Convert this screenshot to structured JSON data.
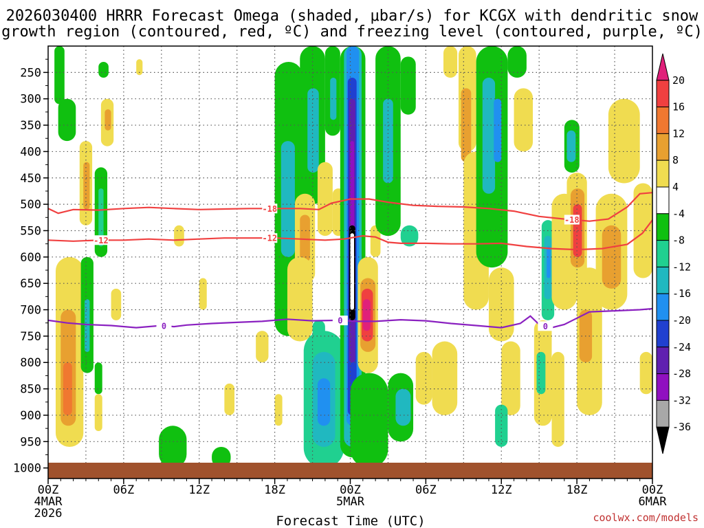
{
  "chart_data": {
    "type": "heatmap",
    "title_lines": [
      "2026030400 HRRR Forecast Omega (shaded, μbar/s) for KCGX with dendritic snow",
      "growth region (contoured, red, ºC) and freezing level (contoured, purple, ºC)"
    ],
    "xlabel": "Forecast Time (UTC)",
    "ylabel": "",
    "credit": "coolwx.com/models",
    "x_range_hours": [
      0,
      48
    ],
    "y_range_hpa": [
      1020,
      200
    ],
    "x_ticks": [
      {
        "hour": 0,
        "lines": [
          "00Z",
          "4MAR",
          "2026"
        ]
      },
      {
        "hour": 6,
        "lines": [
          "06Z"
        ]
      },
      {
        "hour": 12,
        "lines": [
          "12Z"
        ]
      },
      {
        "hour": 18,
        "lines": [
          "18Z"
        ]
      },
      {
        "hour": 24,
        "lines": [
          "00Z",
          "5MAR"
        ]
      },
      {
        "hour": 30,
        "lines": [
          "06Z"
        ]
      },
      {
        "hour": 36,
        "lines": [
          "12Z"
        ]
      },
      {
        "hour": 42,
        "lines": [
          "18Z"
        ]
      },
      {
        "hour": 48,
        "lines": [
          "00Z",
          "6MAR"
        ]
      }
    ],
    "y_ticks": [
      250,
      300,
      350,
      400,
      450,
      500,
      550,
      600,
      650,
      700,
      750,
      800,
      850,
      900,
      950,
      1000
    ],
    "colorbar": {
      "labels": [
        "20",
        "16",
        "12",
        "8",
        "4",
        "-4",
        "-8",
        "-12",
        "-16",
        "-20",
        "-24",
        "-28",
        "-32",
        "-36"
      ],
      "colors": [
        "#e0207a",
        "#f04040",
        "#f07830",
        "#e8a030",
        "#f0dc50",
        "#ffffff",
        "#10c010",
        "#20d090",
        "#20b8c0",
        "#2090f0",
        "#2040d0",
        "#6020b0",
        "#9010c0",
        "#a8a8a8",
        "#000000"
      ]
    },
    "surface_color": "#a0522d",
    "omega_cells": [
      {
        "h0": 0.5,
        "h1": 1.3,
        "p0": 200,
        "p1": 310,
        "v": -6
      },
      {
        "h0": 0.8,
        "h1": 2.2,
        "p0": 300,
        "p1": 380,
        "v": -6
      },
      {
        "h0": 4.0,
        "h1": 4.8,
        "p0": 230,
        "p1": 260,
        "v": -6
      },
      {
        "h0": 7.0,
        "h1": 7.5,
        "p0": 225,
        "p1": 255,
        "v": 5
      },
      {
        "h0": 4.2,
        "h1": 5.2,
        "p0": 300,
        "p1": 390,
        "v": 5
      },
      {
        "h0": 4.5,
        "h1": 5.0,
        "p0": 320,
        "p1": 360,
        "v": 9
      },
      {
        "h0": 2.5,
        "h1": 3.5,
        "p0": 380,
        "p1": 540,
        "v": 6
      },
      {
        "h0": 2.8,
        "h1": 3.3,
        "p0": 420,
        "p1": 510,
        "v": 10
      },
      {
        "h0": 3.7,
        "h1": 4.7,
        "p0": 430,
        "p1": 600,
        "v": -7
      },
      {
        "h0": 4.0,
        "h1": 4.4,
        "p0": 470,
        "p1": 580,
        "v": -11
      },
      {
        "h0": 0.6,
        "h1": 2.8,
        "p0": 600,
        "p1": 960,
        "v": 6
      },
      {
        "h0": 1.0,
        "h1": 2.2,
        "p0": 700,
        "p1": 920,
        "v": 10
      },
      {
        "h0": 1.2,
        "h1": 1.9,
        "p0": 800,
        "p1": 900,
        "v": 13
      },
      {
        "h0": 2.6,
        "h1": 3.6,
        "p0": 600,
        "p1": 820,
        "v": -7
      },
      {
        "h0": 2.9,
        "h1": 3.3,
        "p0": 680,
        "p1": 780,
        "v": -12
      },
      {
        "h0": 5.0,
        "h1": 5.8,
        "p0": 660,
        "p1": 720,
        "v": 5
      },
      {
        "h0": 3.7,
        "h1": 4.3,
        "p0": 800,
        "p1": 860,
        "v": -7
      },
      {
        "h0": 3.7,
        "h1": 4.3,
        "p0": 860,
        "p1": 930,
        "v": 6
      },
      {
        "h0": 8.8,
        "h1": 11.0,
        "p0": 920,
        "p1": 1000,
        "v": -7
      },
      {
        "h0": 13.0,
        "h1": 14.5,
        "p0": 960,
        "p1": 1000,
        "v": -6
      },
      {
        "h0": 10.0,
        "h1": 10.8,
        "p0": 540,
        "p1": 580,
        "v": 5
      },
      {
        "h0": 12.0,
        "h1": 12.6,
        "p0": 640,
        "p1": 700,
        "v": 5
      },
      {
        "h0": 14.0,
        "h1": 14.8,
        "p0": 840,
        "p1": 900,
        "v": 5
      },
      {
        "h0": 18.0,
        "h1": 18.6,
        "p0": 860,
        "p1": 920,
        "v": 6
      },
      {
        "h0": 16.5,
        "h1": 17.5,
        "p0": 740,
        "p1": 800,
        "v": 5
      },
      {
        "h0": 18.0,
        "h1": 20.2,
        "p0": 230,
        "p1": 750,
        "v": -7
      },
      {
        "h0": 18.5,
        "h1": 19.6,
        "p0": 380,
        "p1": 600,
        "v": -12
      },
      {
        "h0": 20.0,
        "h1": 22.0,
        "p0": 200,
        "p1": 500,
        "v": -7
      },
      {
        "h0": 20.6,
        "h1": 21.5,
        "p0": 280,
        "p1": 440,
        "v": -12
      },
      {
        "h0": 22.0,
        "h1": 23.2,
        "p0": 200,
        "p1": 370,
        "v": -7
      },
      {
        "h0": 22.4,
        "h1": 22.9,
        "p0": 260,
        "p1": 340,
        "v": -13
      },
      {
        "h0": 19.6,
        "h1": 21.2,
        "p0": 480,
        "p1": 650,
        "v": 6
      },
      {
        "h0": 20.0,
        "h1": 20.8,
        "p0": 520,
        "p1": 610,
        "v": 10
      },
      {
        "h0": 21.4,
        "h1": 22.6,
        "p0": 420,
        "p1": 560,
        "v": 6
      },
      {
        "h0": 22.6,
        "h1": 23.5,
        "p0": 470,
        "p1": 560,
        "v": 5
      },
      {
        "h0": 19.0,
        "h1": 21.0,
        "p0": 600,
        "p1": 760,
        "v": 5
      },
      {
        "h0": 21.0,
        "h1": 22.0,
        "p0": 720,
        "p1": 780,
        "v": -8
      },
      {
        "h0": 20.3,
        "h1": 23.5,
        "p0": 740,
        "p1": 1000,
        "v": -8
      },
      {
        "h0": 21.0,
        "h1": 22.8,
        "p0": 780,
        "p1": 960,
        "v": -13
      },
      {
        "h0": 21.4,
        "h1": 22.4,
        "p0": 830,
        "p1": 920,
        "v": -17
      },
      {
        "h0": 23.2,
        "h1": 25.2,
        "p0": 200,
        "p1": 980,
        "v": -7
      },
      {
        "h0": 23.5,
        "h1": 24.9,
        "p0": 200,
        "p1": 960,
        "v": -12
      },
      {
        "h0": 23.7,
        "h1": 24.7,
        "p0": 200,
        "p1": 920,
        "v": -17
      },
      {
        "h0": 23.8,
        "h1": 24.5,
        "p0": 260,
        "p1": 900,
        "v": -22
      },
      {
        "h0": 23.9,
        "h1": 24.4,
        "p0": 300,
        "p1": 800,
        "v": -26
      },
      {
        "h0": 24.0,
        "h1": 24.3,
        "p0": 380,
        "p1": 600,
        "v": -29
      },
      {
        "h0": 23.9,
        "h1": 24.4,
        "p0": 540,
        "p1": 720,
        "v": -38
      },
      {
        "h0": 24.0,
        "h1": 24.3,
        "p0": 555,
        "p1": 700,
        "v": -2
      },
      {
        "h0": 24.4,
        "h1": 25.8,
        "p0": 830,
        "p1": 960,
        "v": -20
      },
      {
        "h0": 24.6,
        "h1": 25.5,
        "p0": 850,
        "p1": 930,
        "v": -26
      },
      {
        "h0": 24.8,
        "h1": 25.2,
        "p0": 860,
        "p1": 890,
        "v": -30
      },
      {
        "h0": 24.0,
        "h1": 27.0,
        "p0": 820,
        "p1": 1000,
        "v": -7
      },
      {
        "h0": 24.6,
        "h1": 26.2,
        "p0": 600,
        "p1": 820,
        "v": 6
      },
      {
        "h0": 24.8,
        "h1": 26.0,
        "p0": 640,
        "p1": 780,
        "v": 11
      },
      {
        "h0": 24.9,
        "h1": 25.8,
        "p0": 660,
        "p1": 760,
        "v": 16
      },
      {
        "h0": 25.0,
        "h1": 25.6,
        "p0": 680,
        "p1": 740,
        "v": 21
      },
      {
        "h0": 25.6,
        "h1": 26.4,
        "p0": 540,
        "p1": 600,
        "v": 5
      },
      {
        "h0": 26.0,
        "h1": 28.0,
        "p0": 200,
        "p1": 560,
        "v": -7
      },
      {
        "h0": 26.6,
        "h1": 27.4,
        "p0": 300,
        "p1": 460,
        "v": -12
      },
      {
        "h0": 28.0,
        "h1": 29.2,
        "p0": 220,
        "p1": 330,
        "v": -7
      },
      {
        "h0": 28.0,
        "h1": 29.4,
        "p0": 540,
        "p1": 580,
        "v": -8
      },
      {
        "h0": 27.0,
        "h1": 29.0,
        "p0": 820,
        "p1": 950,
        "v": -7
      },
      {
        "h0": 27.6,
        "h1": 28.8,
        "p0": 850,
        "p1": 920,
        "v": -12
      },
      {
        "h0": 29.2,
        "h1": 30.5,
        "p0": 780,
        "p1": 880,
        "v": 5
      },
      {
        "h0": 30.5,
        "h1": 32.5,
        "p0": 760,
        "p1": 900,
        "v": 5
      },
      {
        "h0": 31.4,
        "h1": 32.5,
        "p0": 200,
        "p1": 260,
        "v": 5
      },
      {
        "h0": 32.6,
        "h1": 34.0,
        "p0": 200,
        "p1": 400,
        "v": 5
      },
      {
        "h0": 32.8,
        "h1": 33.6,
        "p0": 280,
        "p1": 420,
        "v": 9
      },
      {
        "h0": 33.0,
        "h1": 35.0,
        "p0": 400,
        "p1": 700,
        "v": 5
      },
      {
        "h0": 34.0,
        "h1": 36.5,
        "p0": 200,
        "p1": 620,
        "v": -7
      },
      {
        "h0": 34.5,
        "h1": 35.5,
        "p0": 260,
        "p1": 480,
        "v": -12
      },
      {
        "h0": 35.4,
        "h1": 36.0,
        "p0": 300,
        "p1": 420,
        "v": -17
      },
      {
        "h0": 36.5,
        "h1": 38.0,
        "p0": 200,
        "p1": 260,
        "v": -7
      },
      {
        "h0": 35.0,
        "h1": 37.0,
        "p0": 620,
        "p1": 760,
        "v": 5
      },
      {
        "h0": 36.0,
        "h1": 37.5,
        "p0": 760,
        "p1": 900,
        "v": 5
      },
      {
        "h0": 35.5,
        "h1": 36.5,
        "p0": 880,
        "p1": 960,
        "v": -8
      },
      {
        "h0": 37.0,
        "h1": 38.5,
        "p0": 280,
        "p1": 400,
        "v": 5
      },
      {
        "h0": 38.6,
        "h1": 40.0,
        "p0": 720,
        "p1": 920,
        "v": 5
      },
      {
        "h0": 38.8,
        "h1": 39.5,
        "p0": 780,
        "p1": 860,
        "v": -8
      },
      {
        "h0": 39.2,
        "h1": 40.2,
        "p0": 530,
        "p1": 720,
        "v": -8
      },
      {
        "h0": 39.4,
        "h1": 40.0,
        "p0": 560,
        "p1": 680,
        "v": -13
      },
      {
        "h0": 39.6,
        "h1": 39.9,
        "p0": 580,
        "p1": 640,
        "v": -18
      },
      {
        "h0": 40.0,
        "h1": 41.0,
        "p0": 780,
        "p1": 960,
        "v": 5
      },
      {
        "h0": 40.0,
        "h1": 42.0,
        "p0": 480,
        "p1": 700,
        "v": 5
      },
      {
        "h0": 41.0,
        "h1": 42.2,
        "p0": 340,
        "p1": 440,
        "v": -7
      },
      {
        "h0": 41.2,
        "h1": 41.9,
        "p0": 360,
        "p1": 420,
        "v": -12
      },
      {
        "h0": 41.2,
        "h1": 42.8,
        "p0": 440,
        "p1": 640,
        "v": 6
      },
      {
        "h0": 41.5,
        "h1": 42.6,
        "p0": 470,
        "p1": 620,
        "v": 10
      },
      {
        "h0": 41.7,
        "h1": 42.4,
        "p0": 500,
        "p1": 600,
        "v": 16
      },
      {
        "h0": 42.0,
        "h1": 44.0,
        "p0": 620,
        "p1": 900,
        "v": 5
      },
      {
        "h0": 42.2,
        "h1": 43.2,
        "p0": 700,
        "p1": 800,
        "v": 9
      },
      {
        "h0": 44.5,
        "h1": 47.0,
        "p0": 300,
        "p1": 460,
        "v": 5
      },
      {
        "h0": 43.5,
        "h1": 46.0,
        "p0": 480,
        "p1": 700,
        "v": 5
      },
      {
        "h0": 44.0,
        "h1": 45.5,
        "p0": 540,
        "p1": 660,
        "v": 9
      },
      {
        "h0": 46.5,
        "h1": 48.0,
        "p0": 460,
        "p1": 640,
        "v": 5
      },
      {
        "h0": 47.0,
        "h1": 48.0,
        "p0": 780,
        "p1": 860,
        "v": 5
      }
    ],
    "contours": [
      {
        "name": "dendritic-top",
        "level": "-18",
        "color": "#f04040",
        "label_hours": [
          17.6,
          41.6
        ],
        "points": [
          [
            0,
            508
          ],
          [
            0.8,
            517
          ],
          [
            2,
            510
          ],
          [
            4,
            511
          ],
          [
            6,
            508
          ],
          [
            8,
            506
          ],
          [
            10,
            508
          ],
          [
            12,
            510
          ],
          [
            14,
            509
          ],
          [
            16,
            508
          ],
          [
            18,
            508
          ],
          [
            20,
            508
          ],
          [
            21.5,
            510
          ],
          [
            22.5,
            498
          ],
          [
            24,
            490
          ],
          [
            25.5,
            490
          ],
          [
            27,
            496
          ],
          [
            29,
            502
          ],
          [
            31,
            504
          ],
          [
            33,
            505
          ],
          [
            35,
            508
          ],
          [
            37,
            513
          ],
          [
            39,
            523
          ],
          [
            41,
            528
          ],
          [
            43,
            532
          ],
          [
            44.5,
            528
          ],
          [
            46,
            505
          ],
          [
            47,
            480
          ],
          [
            48,
            478
          ]
        ]
      },
      {
        "name": "dendritic-bottom",
        "level": "-12",
        "color": "#f04040",
        "label_hours": [
          4.2,
          17.6
        ],
        "points": [
          [
            0,
            568
          ],
          [
            2,
            570
          ],
          [
            4,
            568
          ],
          [
            6,
            568
          ],
          [
            8,
            566
          ],
          [
            10,
            568
          ],
          [
            12,
            566
          ],
          [
            14,
            564
          ],
          [
            16,
            564
          ],
          [
            18,
            564
          ],
          [
            20,
            566
          ],
          [
            22,
            568
          ],
          [
            23.5,
            566
          ],
          [
            25,
            560
          ],
          [
            26,
            562
          ],
          [
            27,
            572
          ],
          [
            28,
            574
          ],
          [
            30,
            574
          ],
          [
            32,
            575
          ],
          [
            34,
            575
          ],
          [
            36,
            574
          ],
          [
            38,
            580
          ],
          [
            40,
            584
          ],
          [
            42,
            586
          ],
          [
            44,
            584
          ],
          [
            46,
            576
          ],
          [
            47.2,
            555
          ],
          [
            48,
            530
          ]
        ]
      },
      {
        "name": "freezing-level",
        "level": "0",
        "color": "#8a20c0",
        "label_hours": [
          9.2,
          23.2,
          39.5
        ],
        "points": [
          [
            0,
            720
          ],
          [
            1.5,
            725
          ],
          [
            3,
            728
          ],
          [
            5,
            730
          ],
          [
            7,
            734
          ],
          [
            9,
            730
          ],
          [
            10,
            732
          ],
          [
            11,
            729
          ],
          [
            13,
            726
          ],
          [
            15,
            724
          ],
          [
            17,
            722
          ],
          [
            19,
            718
          ],
          [
            21,
            721
          ],
          [
            23,
            720
          ],
          [
            24.5,
            722
          ],
          [
            26,
            722
          ],
          [
            28,
            719
          ],
          [
            30,
            721
          ],
          [
            32,
            726
          ],
          [
            34,
            730
          ],
          [
            36,
            734
          ],
          [
            37.5,
            726
          ],
          [
            38.3,
            712
          ],
          [
            39,
            728
          ],
          [
            40,
            734
          ],
          [
            41,
            728
          ],
          [
            42,
            716
          ],
          [
            43,
            704
          ],
          [
            45,
            702
          ],
          [
            47,
            700
          ],
          [
            48,
            698
          ]
        ]
      }
    ]
  }
}
